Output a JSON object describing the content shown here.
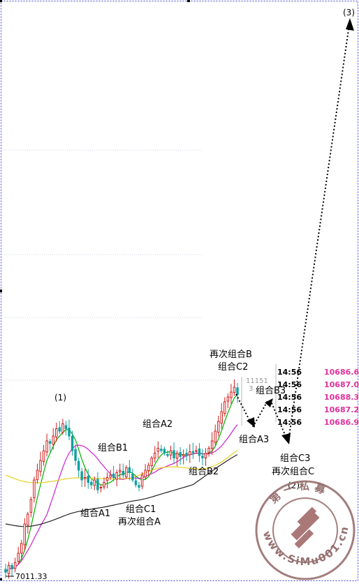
{
  "chart_data": {
    "type": "candlestick",
    "title": "",
    "xlabel": "",
    "ylabel": "",
    "grid": true,
    "price_low_label": "7011.33",
    "price_ref_label": "11151",
    "price_ref_label_small": "3",
    "candles_close": [
      7011.33,
      7150,
      7080,
      7210,
      7400,
      7600,
      8000,
      8200,
      8500,
      8900,
      9100,
      9300,
      9500,
      9700,
      9650,
      9800,
      9950,
      9900,
      10050,
      9950,
      9800,
      9500,
      9300,
      9100,
      8900,
      8950,
      8850,
      8800,
      8900,
      8700,
      8750,
      8850,
      8950,
      9000,
      8950,
      9050,
      9100,
      9000,
      9150,
      9050,
      8900,
      8800,
      8750,
      9000,
      9100,
      9200,
      9350,
      9450,
      9550,
      9500,
      9450,
      9400,
      9500,
      9350,
      9450,
      9380,
      9420,
      9400,
      9480,
      9460,
      9500,
      9400,
      9350,
      9450,
      9550,
      9700,
      9900,
      10100,
      10300,
      10500,
      10600,
      10700,
      10800,
      10650
    ],
    "moving_averages": [
      {
        "color": "#00b000",
        "period": 5
      },
      {
        "color": "#cc22cc",
        "period": 14
      },
      {
        "color": "#e8d020",
        "period": 40
      },
      {
        "color": "#222222",
        "period": 60
      }
    ],
    "quotes": [
      {
        "time": "14:56",
        "price": "10686.6"
      },
      {
        "time": "14:56",
        "price": "10687.0"
      },
      {
        "time": "14:56",
        "price": "10688.3"
      },
      {
        "time": "14:56",
        "price": "10687.2"
      },
      {
        "time": "14:56",
        "price": "10686.9"
      }
    ],
    "annotations": {
      "wave1": "(1)",
      "wave2": "(2)",
      "wave3": "(3)",
      "a1": "组合A1",
      "a2": "组合A2",
      "a3": "组合A3",
      "b1": "组合B1",
      "b2": "组合B2",
      "b3": "组合B3",
      "c1": "组合C1",
      "c2": "组合C2",
      "c3": "组合C3",
      "again_a": "再次组合A",
      "again_b": "再次组合B",
      "again_c": "再次组合C"
    },
    "watermark": {
      "top_text": "第一私募",
      "url_text": "www.SiMu001.cn"
    }
  }
}
